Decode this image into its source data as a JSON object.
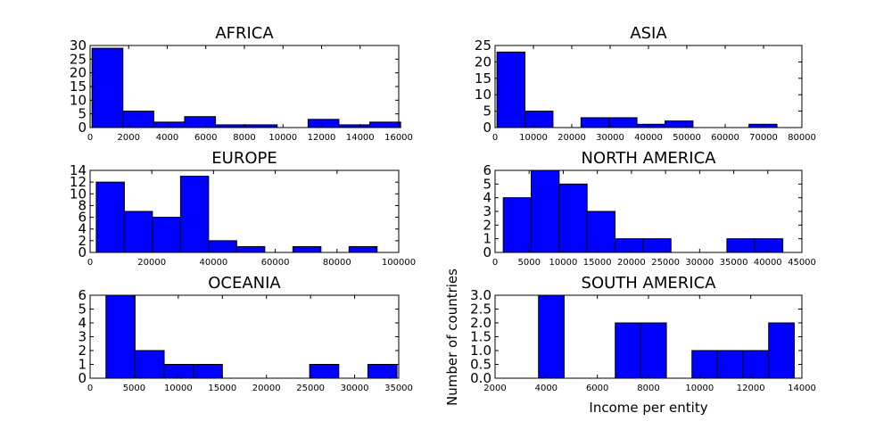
{
  "figure": {
    "ylabel": "Number of countries",
    "xlabel": "Income per entity"
  },
  "colors": {
    "bar": "#0000ff",
    "edge": "#000000",
    "axes": "#000000"
  },
  "chart_data": [
    {
      "type": "bar",
      "title": "AFRICA",
      "bin_edges": [
        100,
        1700,
        3300,
        4900,
        6500,
        8100,
        9700,
        11300,
        12900,
        14500,
        16100
      ],
      "values": [
        29,
        6,
        2,
        4,
        1,
        1,
        0,
        3,
        1,
        2
      ],
      "xlim": [
        0,
        16000
      ],
      "ylim": [
        0,
        30
      ],
      "xticks": [
        0,
        2000,
        4000,
        6000,
        8000,
        10000,
        12000,
        14000,
        16000
      ],
      "yticks": [
        0,
        5,
        10,
        15,
        20,
        25,
        30
      ]
    },
    {
      "type": "bar",
      "title": "ASIA",
      "bin_edges": [
        500,
        7800,
        15100,
        22400,
        29700,
        37000,
        44300,
        51600,
        58900,
        66200,
        73500
      ],
      "values": [
        23,
        5,
        0,
        3,
        3,
        1,
        2,
        0,
        0,
        1
      ],
      "xlim": [
        0,
        80000
      ],
      "ylim": [
        0,
        25
      ],
      "xticks": [
        0,
        10000,
        20000,
        30000,
        40000,
        50000,
        60000,
        70000,
        80000
      ],
      "yticks": [
        0,
        5,
        10,
        15,
        20,
        25
      ]
    },
    {
      "type": "bar",
      "title": "EUROPE",
      "bin_edges": [
        2000,
        11100,
        20200,
        29300,
        38400,
        47500,
        56600,
        65700,
        74800,
        83900,
        93000
      ],
      "values": [
        12,
        7,
        6,
        13,
        2,
        1,
        0,
        1,
        0,
        1
      ],
      "xlim": [
        0,
        100000
      ],
      "ylim": [
        0,
        14
      ],
      "xticks": [
        0,
        20000,
        40000,
        60000,
        80000,
        100000
      ],
      "yticks": [
        0,
        2,
        4,
        6,
        8,
        10,
        12,
        14
      ]
    },
    {
      "type": "bar",
      "title": "NORTH AMERICA",
      "bin_edges": [
        1200,
        5300,
        9400,
        13500,
        17600,
        21700,
        25800,
        29900,
        34000,
        38100,
        42200
      ],
      "values": [
        4,
        6,
        5,
        3,
        1,
        1,
        0,
        0,
        1,
        1
      ],
      "xlim": [
        0,
        45000
      ],
      "ylim": [
        0,
        6
      ],
      "xticks": [
        0,
        5000,
        10000,
        15000,
        20000,
        25000,
        30000,
        35000,
        40000,
        45000
      ],
      "yticks": [
        0,
        1,
        2,
        3,
        4,
        5,
        6
      ]
    },
    {
      "type": "bar",
      "title": "OCEANIA",
      "bin_edges": [
        1800,
        5100,
        8400,
        11700,
        15000,
        18300,
        21600,
        24900,
        28200,
        31500,
        34800
      ],
      "values": [
        6,
        2,
        1,
        1,
        0,
        0,
        0,
        1,
        0,
        1
      ],
      "xlim": [
        0,
        35000
      ],
      "ylim": [
        0,
        6
      ],
      "xticks": [
        0,
        5000,
        10000,
        15000,
        20000,
        25000,
        30000,
        35000
      ],
      "yticks": [
        0,
        1,
        2,
        3,
        4,
        5,
        6
      ]
    },
    {
      "type": "bar",
      "title": "SOUTH AMERICA",
      "bin_edges": [
        3700,
        4700,
        5700,
        6700,
        7700,
        8700,
        9700,
        10700,
        11700,
        12700,
        13700
      ],
      "values": [
        3,
        0,
        0,
        2,
        2,
        0,
        1,
        1,
        1,
        2
      ],
      "xlim": [
        2000,
        14000
      ],
      "ylim": [
        0,
        3
      ],
      "xticks": [
        2000,
        4000,
        6000,
        8000,
        10000,
        12000,
        14000
      ],
      "yticks": [
        0,
        0.5,
        1.0,
        1.5,
        2.0,
        2.5,
        3.0
      ],
      "ytick_labels": [
        "0.0",
        "0.5",
        "1.0",
        "1.5",
        "2.0",
        "2.5",
        "3.0"
      ]
    }
  ]
}
